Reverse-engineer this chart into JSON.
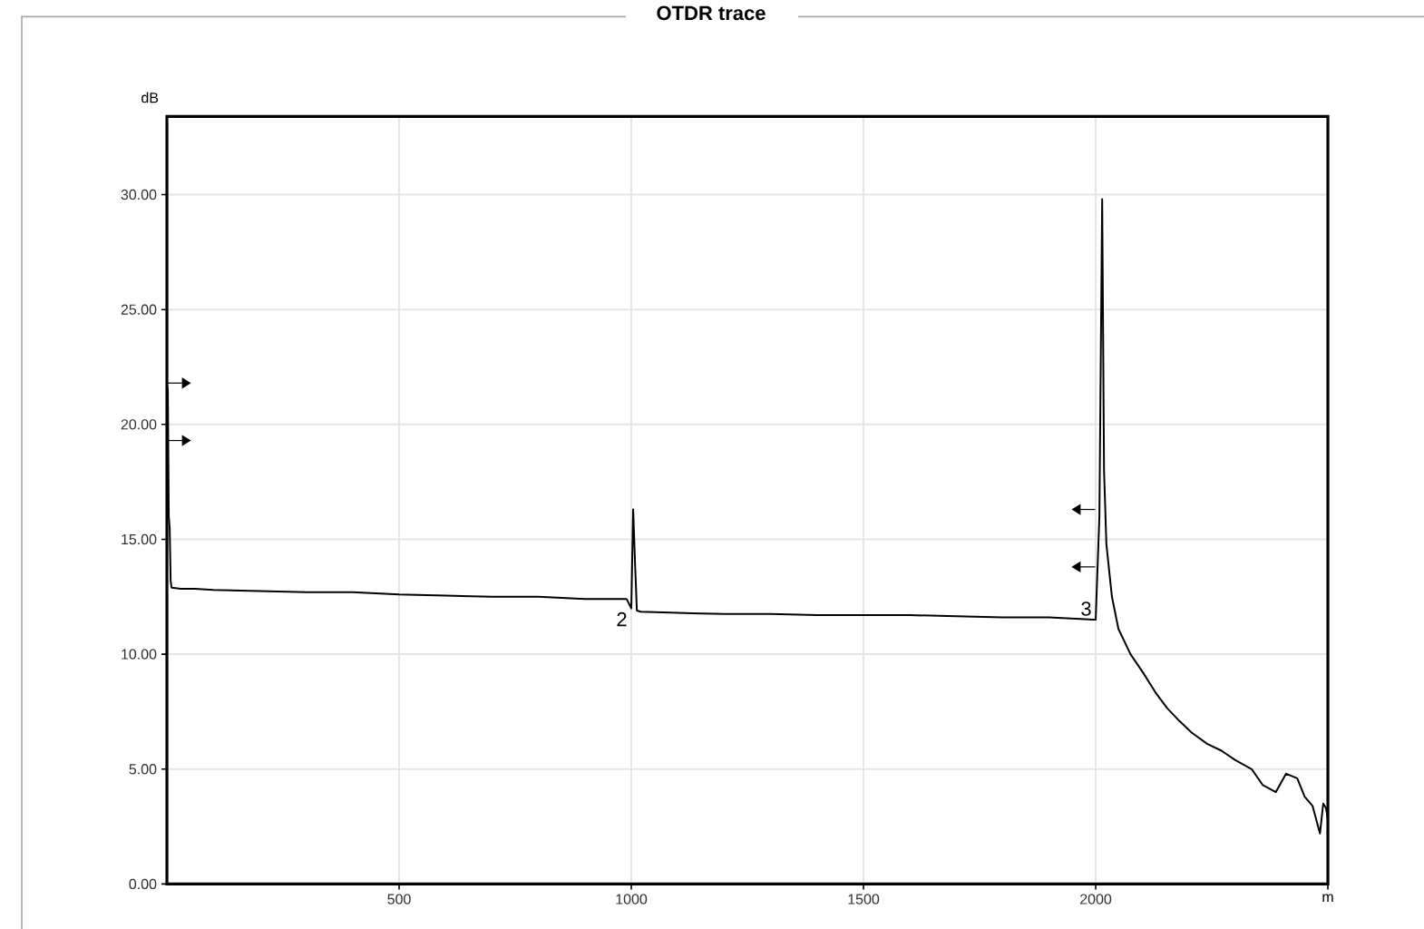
{
  "chart_data": {
    "type": "line",
    "title": "OTDR trace",
    "xlabel": "m",
    "ylabel": "dB",
    "x": [
      0,
      2,
      4,
      6,
      8,
      10,
      30,
      60,
      100,
      200,
      300,
      400,
      500,
      600,
      700,
      800,
      900,
      990,
      1000,
      1004,
      1008,
      1012,
      1020,
      1100,
      1200,
      1300,
      1400,
      1500,
      1600,
      1700,
      1800,
      1900,
      1995,
      2000,
      2008,
      2014,
      2018,
      2023,
      2035,
      2049,
      2075,
      2102,
      2130,
      2154,
      2180,
      2206,
      2240,
      2271,
      2300,
      2336,
      2360,
      2388,
      2410,
      2434,
      2450,
      2467,
      2483,
      2490,
      2496,
      2500
    ],
    "series": [
      {
        "color": "#000000",
        "values": [
          21.7,
          21.5,
          16,
          15.5,
          13.2,
          12.9,
          12.85,
          12.85,
          12.8,
          12.75,
          12.7,
          12.7,
          12.6,
          12.55,
          12.5,
          12.5,
          12.4,
          12.4,
          12.0,
          16.3,
          14,
          11.9,
          11.85,
          11.8,
          11.75,
          11.75,
          11.7,
          11.7,
          11.7,
          11.65,
          11.6,
          11.6,
          11.5,
          11.5,
          16,
          29.8,
          18,
          14.8,
          12.5,
          11.1,
          10,
          9.2,
          8.3,
          7.65,
          7.1,
          6.6,
          6.1,
          5.8,
          5.4,
          5.0,
          4.3,
          4.0,
          4.8,
          4.6,
          3.8,
          3.4,
          2.2,
          3.5,
          3.3,
          2.8
        ]
      }
    ],
    "xlim": [
      0,
      2500
    ],
    "ylim": [
      0,
      33.4
    ],
    "xticks": [
      500,
      1000,
      1500,
      2000,
      {
        "value": 2500,
        "label": null
      }
    ],
    "yticks": [
      {
        "value": 0,
        "label": "0.00"
      },
      {
        "value": 5,
        "label": "5.00"
      },
      {
        "value": 10,
        "label": "10.00"
      },
      {
        "value": 15,
        "label": "15.00"
      },
      {
        "value": 20,
        "label": "20.00"
      },
      {
        "value": 25,
        "label": "25.00"
      },
      {
        "value": 30,
        "label": "30.00"
      }
    ],
    "annotations": [
      {
        "text": "2",
        "x": 1000,
        "y": 12.0
      },
      {
        "text": "3",
        "x": 2000,
        "y": 11.5
      }
    ],
    "grid": true,
    "marker": "none",
    "line_style": "solid"
  }
}
